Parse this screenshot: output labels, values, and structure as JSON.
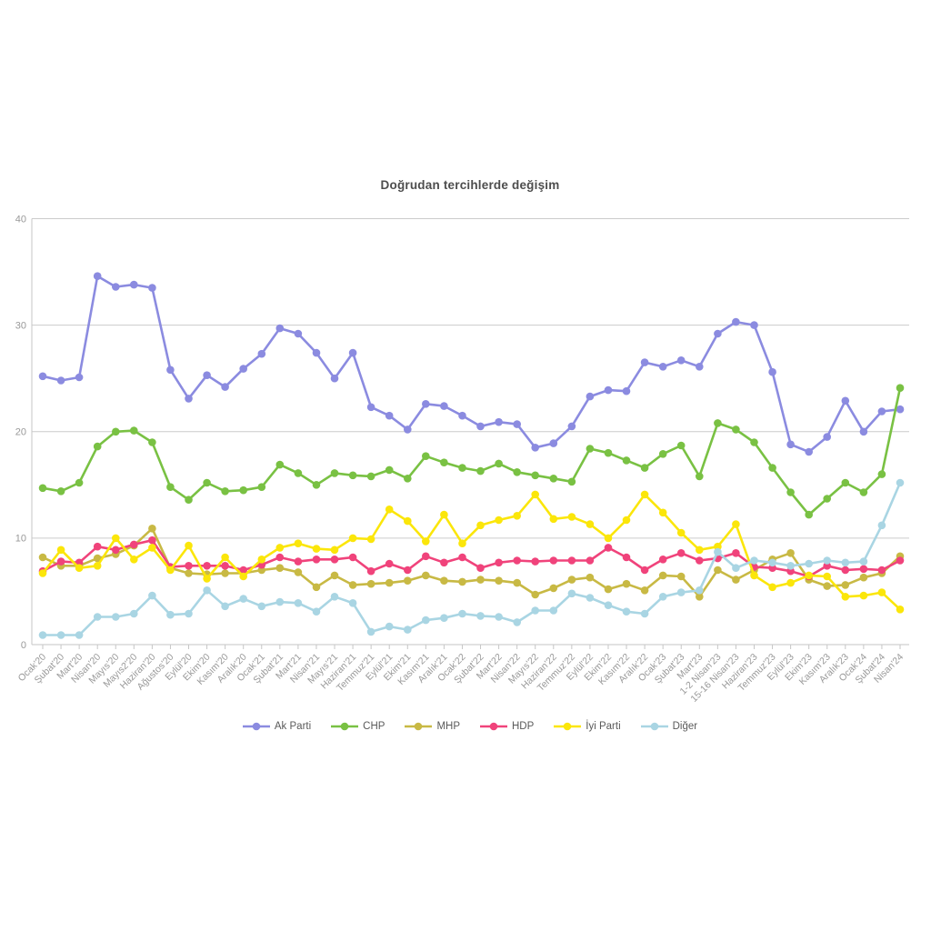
{
  "title": "Doğrudan tercihlerde değişim",
  "chart_data": {
    "type": "line",
    "title": "Doğrudan tercihlerde değişim",
    "xlabel": "",
    "ylabel": "",
    "ylim": [
      0,
      40
    ],
    "yticks": [
      0,
      10,
      20,
      30,
      40
    ],
    "grid": true,
    "legend_position": "bottom",
    "x_tick_rotation": -45,
    "categories": [
      "Ocak'20",
      "Şubat'20",
      "Mart'20",
      "Nisan'20",
      "Mayıs'20",
      "Mayıs2'20",
      "Haziran'20",
      "Ağustos'20",
      "Eylül'20",
      "Ekim'20",
      "Kasım'20",
      "Aralık'20",
      "Ocak'21",
      "Şubat'21",
      "Mart'21",
      "Nisan'21",
      "Mayıs'21",
      "Haziran'21",
      "Temmuz'21",
      "Eylül'21",
      "Ekim'21",
      "Kasım'21",
      "Aralık'21",
      "Ocak'22",
      "Şubat'22",
      "Mart'22",
      "Nisan'22",
      "Mayıs'22",
      "Haziran'22",
      "Temmuz'22",
      "Eylül'22",
      "Ekim'22",
      "Kasım'22",
      "Aralık'22",
      "Ocak'23",
      "Şubat'23",
      "Mart'23",
      "1-2 Nisan'23",
      "15-16 Nisan'23",
      "Haziran'23",
      "Temmuz'23",
      "Eylül'23",
      "Ekim'23",
      "Kasım'23",
      "Aralık'23",
      "Ocak'24",
      "Şubat'24",
      "Nisan'24"
    ],
    "series": [
      {
        "id": "ak-parti",
        "name": "Ak Parti",
        "color": "#8b8be0",
        "values": [
          25.2,
          24.8,
          25.1,
          34.6,
          33.6,
          33.8,
          33.5,
          25.8,
          23.1,
          25.3,
          24.2,
          25.9,
          27.3,
          29.7,
          29.2,
          27.4,
          25.0,
          27.4,
          22.3,
          21.5,
          20.2,
          22.6,
          22.4,
          21.5,
          20.5,
          20.9,
          20.7,
          18.5,
          18.9,
          20.5,
          23.3,
          23.9,
          23.8,
          26.5,
          26.1,
          26.7,
          26.1,
          29.2,
          30.3,
          30.0,
          25.6,
          18.8,
          18.1,
          19.5,
          22.9,
          20.0,
          21.9,
          22.1
        ]
      },
      {
        "id": "chp",
        "name": "CHP",
        "color": "#79c143",
        "values": [
          14.7,
          14.4,
          15.2,
          18.6,
          20.0,
          20.1,
          19.0,
          14.8,
          13.6,
          15.2,
          14.4,
          14.5,
          14.8,
          16.9,
          16.1,
          15.0,
          16.1,
          15.9,
          15.8,
          16.4,
          15.6,
          17.7,
          17.1,
          16.6,
          16.3,
          17.0,
          16.2,
          15.9,
          15.6,
          15.3,
          18.4,
          18.0,
          17.3,
          16.6,
          17.9,
          18.7,
          15.8,
          20.8,
          20.2,
          19.0,
          16.6,
          14.3,
          12.2,
          13.7,
          15.2,
          14.3,
          16.0,
          24.1
        ]
      },
      {
        "id": "mhp",
        "name": "MHP",
        "color": "#c8b944",
        "values": [
          8.2,
          7.4,
          7.4,
          8.1,
          8.5,
          9.3,
          10.9,
          7.2,
          6.7,
          6.6,
          6.7,
          6.7,
          7.0,
          7.2,
          6.8,
          5.4,
          6.5,
          5.6,
          5.7,
          5.8,
          6.0,
          6.5,
          6.0,
          5.9,
          6.1,
          6.0,
          5.8,
          4.7,
          5.3,
          6.1,
          6.3,
          5.2,
          5.7,
          5.1,
          6.5,
          6.4,
          4.5,
          7.0,
          6.1,
          7.0,
          8.0,
          8.6,
          6.1,
          5.5,
          5.6,
          6.3,
          6.7,
          8.3
        ]
      },
      {
        "id": "hdp",
        "name": "HDP",
        "color": "#f0437b",
        "values": [
          6.9,
          7.8,
          7.7,
          9.2,
          8.9,
          9.4,
          9.8,
          7.3,
          7.4,
          7.4,
          7.4,
          7.0,
          7.5,
          8.2,
          7.8,
          8.0,
          8.0,
          8.2,
          6.9,
          7.6,
          7.0,
          8.3,
          7.7,
          8.2,
          7.2,
          7.7,
          7.9,
          7.8,
          7.9,
          7.9,
          7.9,
          9.1,
          8.2,
          7.0,
          8.0,
          8.6,
          7.9,
          8.1,
          8.6,
          7.3,
          7.2,
          6.9,
          6.4,
          7.4,
          7.0,
          7.1,
          7.0,
          7.9
        ]
      },
      {
        "id": "iyi-parti",
        "name": "İyi Parti",
        "color": "#fbe60a",
        "values": [
          6.7,
          8.9,
          7.2,
          7.4,
          10.0,
          8.0,
          9.1,
          7.0,
          9.3,
          6.2,
          8.2,
          6.4,
          8.0,
          9.1,
          9.5,
          9.0,
          8.9,
          10.0,
          9.9,
          12.7,
          11.6,
          9.7,
          12.2,
          9.5,
          11.2,
          11.7,
          12.1,
          14.1,
          11.8,
          12.0,
          11.3,
          10.0,
          11.7,
          14.1,
          12.4,
          10.5,
          8.9,
          9.2,
          11.3,
          6.5,
          5.4,
          5.8,
          6.5,
          6.4,
          4.5,
          4.6,
          4.9,
          3.3
        ]
      },
      {
        "id": "diger",
        "name": "Diğer",
        "color": "#a9d5e3",
        "values": [
          0.9,
          0.9,
          0.9,
          2.6,
          2.6,
          2.9,
          4.6,
          2.8,
          2.9,
          5.1,
          3.6,
          4.3,
          3.6,
          4.0,
          3.9,
          3.1,
          4.5,
          3.9,
          1.2,
          1.7,
          1.4,
          2.3,
          2.5,
          2.9,
          2.7,
          2.6,
          2.1,
          3.2,
          3.2,
          4.8,
          4.4,
          3.7,
          3.1,
          2.9,
          4.5,
          4.9,
          5.1,
          8.7,
          7.2,
          7.9,
          7.7,
          7.4,
          7.6,
          7.9,
          7.7,
          7.8,
          11.2,
          15.2
        ]
      }
    ]
  },
  "style": {
    "grid_color": "#cccccc",
    "axis_color": "#c6c6c6",
    "tick_label_color": "#999999",
    "title_color": "#4d4d4d",
    "background": "#ffffff"
  }
}
